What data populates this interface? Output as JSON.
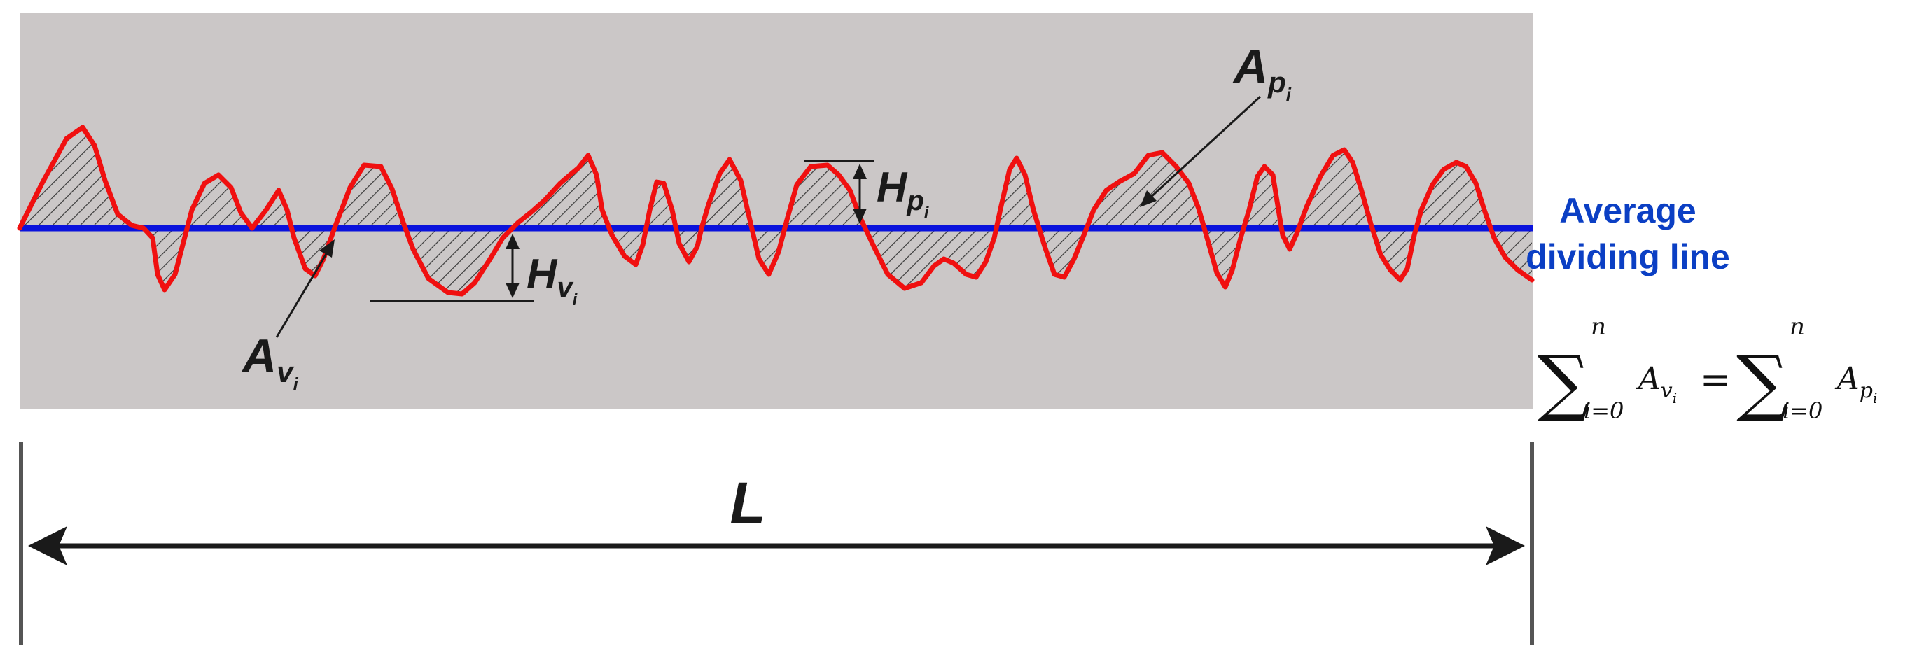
{
  "colors": {
    "background_panel": "#cbc7c7",
    "profile_curve": "#f01010",
    "mean_line": "#0a12dc",
    "hatch": "#3a3a3a",
    "annotation": "#1a1a1a",
    "mean_line_label": "#0b3fc4"
  },
  "labels": {
    "area_peak": {
      "main": "A",
      "sub": "p",
      "subsub": "i"
    },
    "area_valley": {
      "main": "A",
      "sub": "v",
      "subsub": "i"
    },
    "height_peak": {
      "main": "H",
      "sub": "p",
      "subsub": "i"
    },
    "height_valley": {
      "main": "H",
      "sub": "v",
      "subsub": "i"
    },
    "length": "L",
    "mean_line_line1": "Average",
    "mean_line_line2": "dividing line"
  },
  "equation": {
    "sum_symbol": "∑",
    "upper": "n",
    "lower": "i=0",
    "lhs_var": "A",
    "lhs_sub": "v",
    "lhs_subsub": "i",
    "equals": "=",
    "rhs_var": "A",
    "rhs_sub": "p",
    "rhs_subsub": "i"
  }
}
